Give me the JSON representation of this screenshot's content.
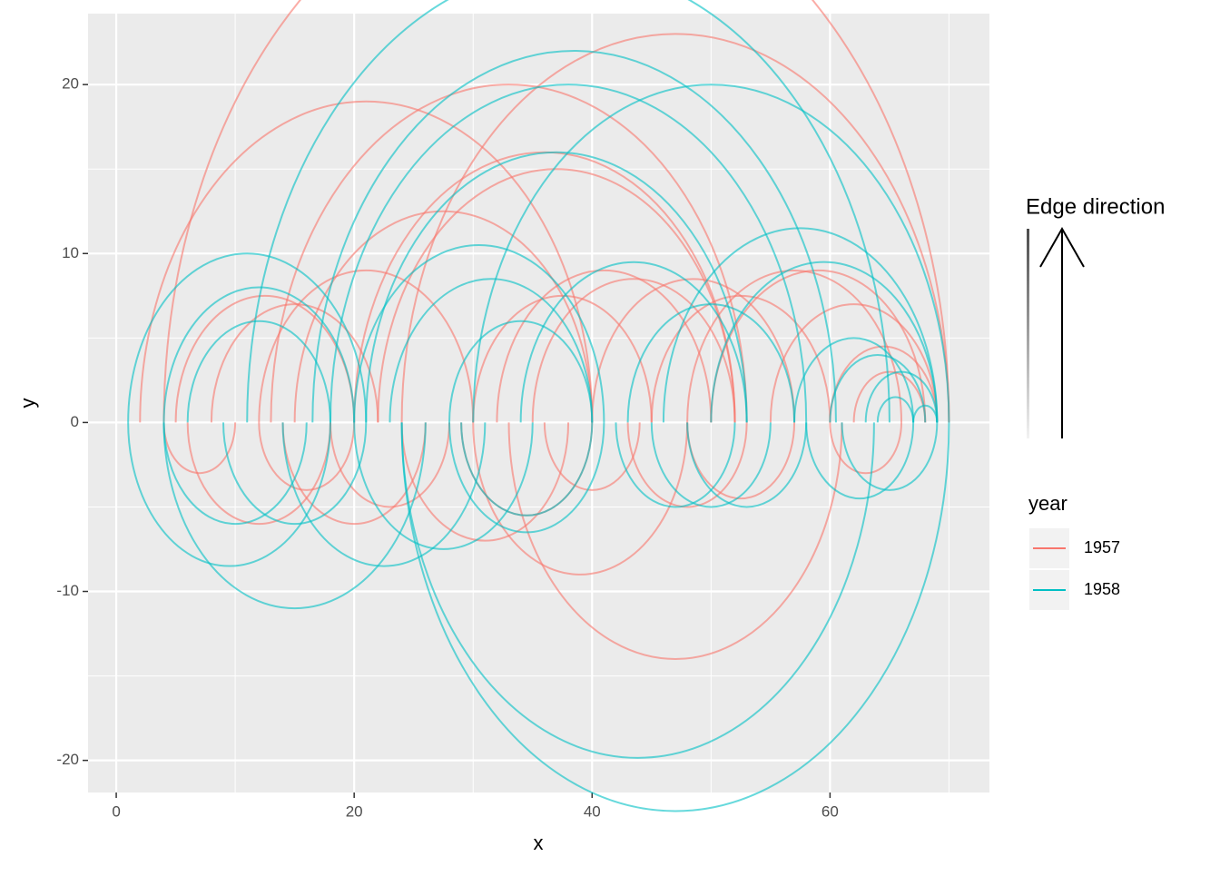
{
  "chart_data": {
    "type": "arc",
    "xlabel": "x",
    "ylabel": "y",
    "xlim": [
      -2.37,
      73.4
    ],
    "ylim": [
      -21.9,
      24.2
    ],
    "xticks": [
      0,
      20,
      40,
      60
    ],
    "yticks": [
      -20,
      -10,
      0,
      10,
      20
    ],
    "grid": true,
    "edge_legend_title": "Edge direction",
    "legend_title": "year",
    "series": [
      {
        "name": "1957",
        "color": "#F8766D",
        "edges": [
          {
            "from": 2,
            "to": 40
          },
          {
            "from": 4,
            "to": 70
          },
          {
            "from": 13,
            "to": 53
          },
          {
            "from": 15,
            "to": 40
          },
          {
            "from": 20,
            "to": 52
          },
          {
            "from": 22,
            "to": 52
          },
          {
            "from": 24,
            "to": 70
          },
          {
            "from": 12,
            "to": 30
          },
          {
            "from": 5,
            "to": 20
          },
          {
            "from": 8,
            "to": 22
          },
          {
            "from": 30,
            "to": 45
          },
          {
            "from": 32,
            "to": 50
          },
          {
            "from": 35,
            "to": 52
          },
          {
            "from": 40,
            "to": 57
          },
          {
            "from": 45,
            "to": 60
          },
          {
            "from": 48,
            "to": 66
          },
          {
            "from": 50,
            "to": 68
          },
          {
            "from": 55,
            "to": 69
          },
          {
            "from": 60,
            "to": 69
          },
          {
            "from": 62,
            "to": 68
          },
          {
            "from": 40,
            "to": 29
          },
          {
            "from": 61,
            "to": 33
          },
          {
            "from": 48,
            "to": 30
          },
          {
            "from": 20,
            "to": 12
          },
          {
            "from": 53,
            "to": 43
          },
          {
            "from": 66,
            "to": 60
          },
          {
            "from": 28,
            "to": 18
          },
          {
            "from": 38,
            "to": 24
          },
          {
            "from": 10,
            "to": 4
          },
          {
            "from": 18,
            "to": 6
          },
          {
            "from": 26,
            "to": 14
          },
          {
            "from": 44,
            "to": 36
          },
          {
            "from": 57,
            "to": 48
          }
        ]
      },
      {
        "name": "1958",
        "color": "#00BFC4",
        "edges": [
          {
            "from": 16.5,
            "to": 60.5
          },
          {
            "from": 30,
            "to": 70
          },
          {
            "from": 21,
            "to": 53
          },
          {
            "from": 11,
            "to": 65
          },
          {
            "from": 18,
            "to": 58
          },
          {
            "from": 1,
            "to": 21
          },
          {
            "from": 4,
            "to": 20
          },
          {
            "from": 6,
            "to": 18
          },
          {
            "from": 20,
            "to": 41
          },
          {
            "from": 23,
            "to": 40
          },
          {
            "from": 28,
            "to": 40
          },
          {
            "from": 34,
            "to": 53
          },
          {
            "from": 43,
            "to": 57
          },
          {
            "from": 46,
            "to": 69
          },
          {
            "from": 50,
            "to": 69
          },
          {
            "from": 57,
            "to": 67
          },
          {
            "from": 60,
            "to": 68
          },
          {
            "from": 63,
            "to": 69
          },
          {
            "from": 64,
            "to": 67
          },
          {
            "from": 67,
            "to": 69
          },
          {
            "from": 63.7,
            "to": 24
          },
          {
            "from": 70,
            "to": 24
          },
          {
            "from": 40,
            "to": 29
          },
          {
            "from": 26,
            "to": 4
          },
          {
            "from": 18,
            "to": 1
          },
          {
            "from": 41,
            "to": 28
          },
          {
            "from": 31,
            "to": 14
          },
          {
            "from": 55,
            "to": 45
          },
          {
            "from": 58,
            "to": 48
          },
          {
            "from": 52,
            "to": 42
          },
          {
            "from": 69,
            "to": 61
          },
          {
            "from": 67,
            "to": 58
          },
          {
            "from": 21,
            "to": 9
          },
          {
            "from": 16,
            "to": 4
          },
          {
            "from": 35,
            "to": 20
          }
        ]
      }
    ]
  }
}
